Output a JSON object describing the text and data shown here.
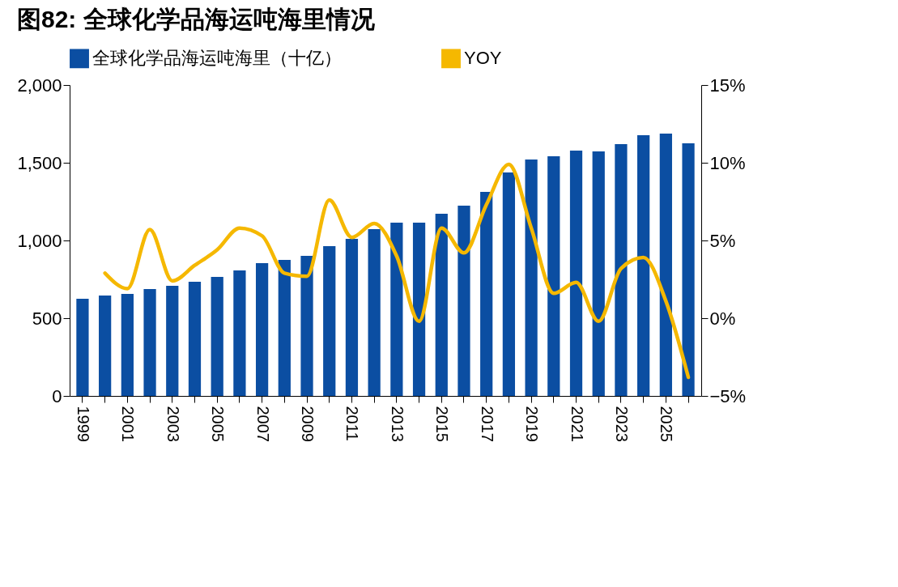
{
  "chart_data": {
    "type": "bar",
    "title": "图82: 全球化学品海运吨海里情况",
    "categories": [
      "1999",
      null,
      "2001",
      null,
      "2003",
      null,
      "2005",
      null,
      "2007",
      null,
      "2009",
      null,
      "2011",
      null,
      "2013",
      null,
      "2015",
      null,
      "2017",
      null,
      "2019",
      null,
      "2021",
      null,
      "2023",
      null,
      "2025",
      null
    ],
    "series": [
      {
        "name": "全球化学品海运吨海里（十亿）",
        "color": "#0b4ea2",
        "values": [
          625,
          646,
          656,
          688,
          708,
          734,
          766,
          807,
          854,
          875,
          901,
          964,
          1010,
          1073,
          1115,
          1115,
          1172,
          1224,
          1313,
          1438,
          1521,
          1542,
          1578,
          1573,
          1620,
          1677,
          1688,
          1625
        ]
      },
      {
        "name": "YOY",
        "type": "line",
        "axis": "y2",
        "color": "#f5b800",
        "values": [
          null,
          2.9,
          1.9,
          5.7,
          2.4,
          3.4,
          4.4,
          5.8,
          5.3,
          2.9,
          2.7,
          7.6,
          5.2,
          6.1,
          4.0,
          -0.2,
          5.8,
          4.2,
          7.3,
          9.9,
          5.8,
          1.6,
          2.3,
          -0.2,
          3.2,
          3.9,
          1.1,
          -3.8
        ]
      }
    ],
    "ylim": [
      0,
      2000
    ],
    "yticks": [
      0,
      {
        "value": 500,
        "label": "500"
      },
      {
        "value": 1000,
        "label": "1,000"
      },
      {
        "value": 1500,
        "label": "1,500"
      },
      {
        "value": 2000,
        "label": "2,000"
      }
    ],
    "y2lim": [
      -5,
      15
    ],
    "y2ticks": [
      {
        "value": -5,
        "label": "−5%"
      },
      {
        "value": 0,
        "label": "0%"
      },
      {
        "value": 5,
        "label": "5%"
      },
      {
        "value": 10,
        "label": "10%"
      },
      {
        "value": 15,
        "label": "15%"
      }
    ],
    "grid": false,
    "legend": "top"
  }
}
